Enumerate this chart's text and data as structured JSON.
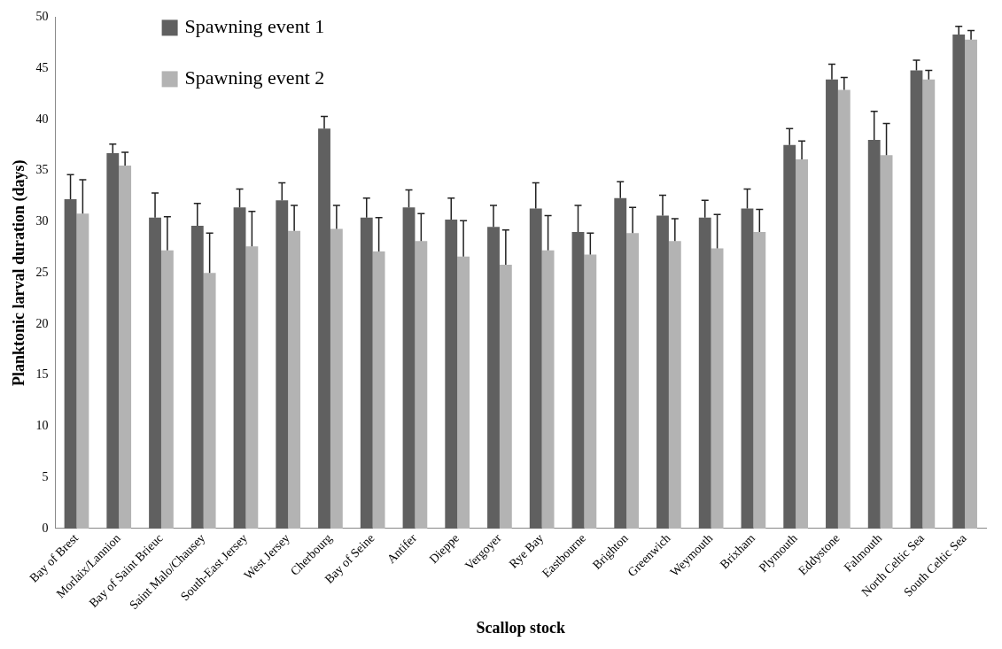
{
  "chart_data": {
    "type": "bar",
    "xlabel": "Scallop stock",
    "ylabel": "Planktonic larval duration (days)",
    "categories": [
      "Bay of Brest",
      "Morlaix/Lannion",
      "Bay of Saint Brieuc",
      "Saint Malo/Chausey",
      "South-East Jersey",
      "West Jersey",
      "Cherbourg",
      "Bay of Seine",
      "Antifer",
      "Dieppe",
      "Vergoyer",
      "Rye Bay",
      "Eastbourne",
      "Brighton",
      "Greenwich",
      "Weymouth",
      "Brixham",
      "Plymouth",
      "Eddystone",
      "Falmouth",
      "North Celtic Sea",
      "South Celtic Sea"
    ],
    "series": [
      {
        "name": "Spawning event 1",
        "color": "#606060",
        "values": [
          32.2,
          36.7,
          30.4,
          29.6,
          31.4,
          32.1,
          39.1,
          30.4,
          31.4,
          30.2,
          29.5,
          31.3,
          29.0,
          32.3,
          30.6,
          30.4,
          31.3,
          37.5,
          43.9,
          38.0,
          44.8,
          48.3
        ],
        "errors": [
          2.4,
          0.9,
          2.4,
          2.2,
          1.8,
          1.7,
          1.2,
          1.9,
          1.7,
          2.1,
          2.1,
          2.5,
          2.6,
          1.6,
          2.0,
          1.7,
          1.9,
          1.6,
          1.5,
          2.8,
          1.0,
          0.8
        ]
      },
      {
        "name": "Spawning event 2",
        "color": "#b3b3b3",
        "values": [
          30.8,
          35.5,
          27.2,
          25.0,
          27.6,
          29.1,
          29.3,
          27.1,
          28.1,
          26.6,
          25.8,
          27.2,
          26.8,
          28.9,
          28.1,
          27.4,
          29.0,
          36.1,
          42.9,
          36.5,
          43.9,
          47.8
        ],
        "errors": [
          3.3,
          1.3,
          3.3,
          3.9,
          3.4,
          2.5,
          2.3,
          3.3,
          2.7,
          3.5,
          3.4,
          3.4,
          2.1,
          2.5,
          2.2,
          3.3,
          2.2,
          1.8,
          1.2,
          3.1,
          0.9,
          0.9
        ]
      }
    ],
    "ylim": [
      0,
      50
    ],
    "yticks": [
      0,
      5,
      10,
      15,
      20,
      25,
      30,
      35,
      40,
      45,
      50
    ],
    "grid": false,
    "legend": "top left"
  }
}
